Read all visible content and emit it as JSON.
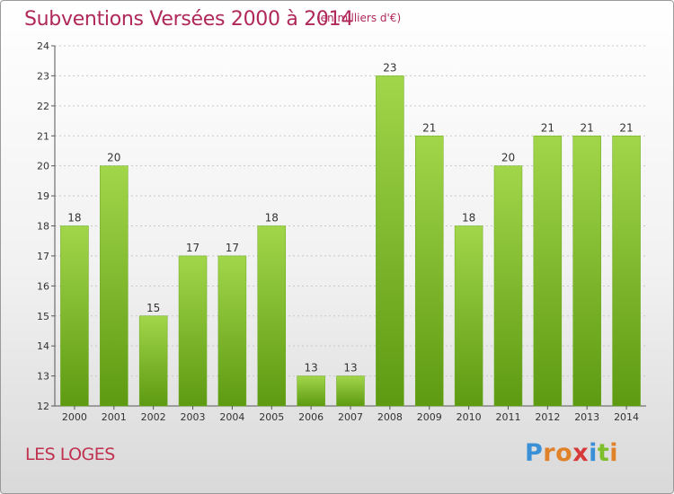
{
  "chart_data": {
    "type": "bar",
    "title": "Subventions Versées 2000 à 2014",
    "subtitle": "(en milliers d'€)",
    "categories": [
      "2000",
      "2001",
      "2002",
      "2003",
      "2004",
      "2005",
      "2006",
      "2007",
      "2008",
      "2009",
      "2010",
      "2011",
      "2012",
      "2013",
      "2014"
    ],
    "values": [
      18,
      20,
      15,
      17,
      17,
      18,
      13,
      13,
      23,
      21,
      18,
      20,
      21,
      21,
      21
    ],
    "ylim": [
      12,
      24
    ],
    "yticks": [
      12,
      13,
      14,
      15,
      16,
      17,
      18,
      19,
      20,
      21,
      22,
      23,
      24
    ],
    "xlabel": "",
    "ylabel": "",
    "grid": true,
    "legend": "none",
    "bar_color": "#7cbf2a"
  },
  "footer": {
    "commune": "LES LOGES",
    "logo_letters": [
      "P",
      "r",
      "o",
      "x",
      "i",
      "t",
      "i"
    ],
    "logo_colors": [
      "#3a8fd6",
      "#e0822a",
      "#e0822a",
      "#d63a3a",
      "#3a8fd6",
      "#7cbf2a",
      "#e0822a"
    ]
  }
}
